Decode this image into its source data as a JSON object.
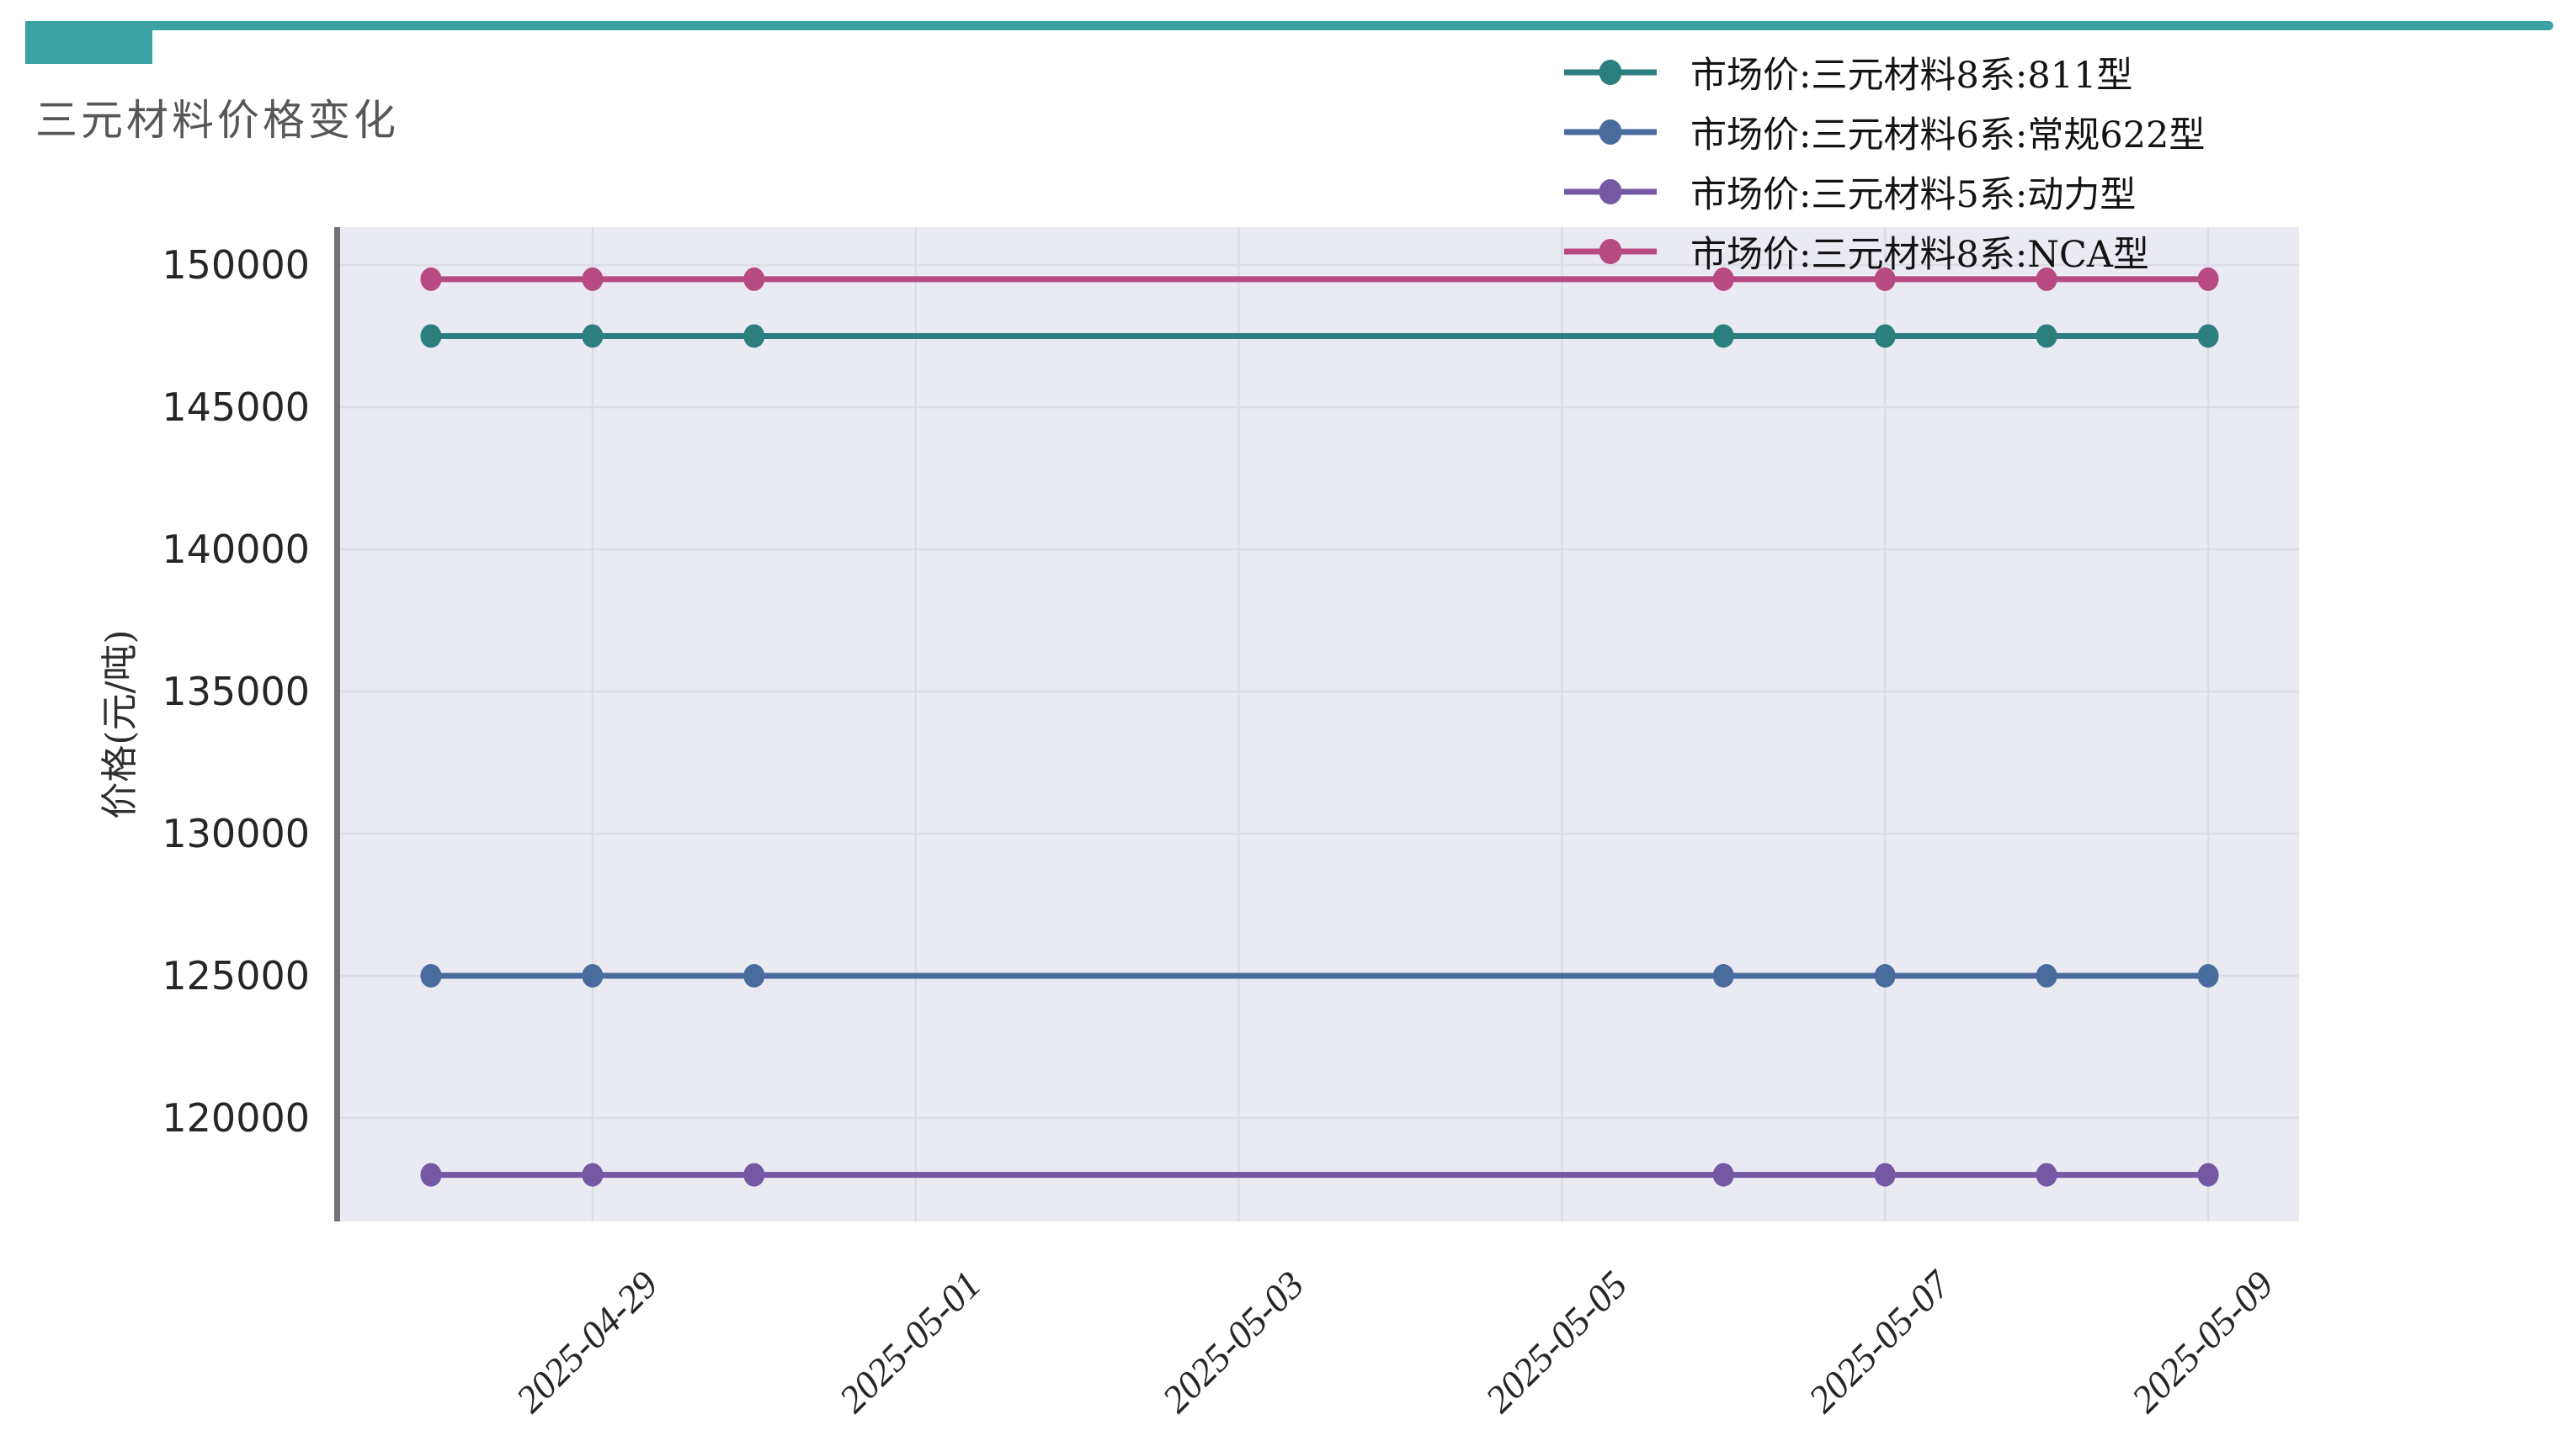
{
  "page": {
    "background": "#ffffff"
  },
  "decor": {
    "accent_color": "#3aa2a2"
  },
  "chart_data": {
    "type": "line",
    "title": "三元材料价格变化",
    "xlabel": "",
    "ylabel": "价格(元/吨)",
    "x_dates": [
      "2025-04-28",
      "2025-04-29",
      "2025-04-30",
      "2025-05-06",
      "2025-05-07",
      "2025-05-08",
      "2025-05-09"
    ],
    "x_tick_labels": [
      "2025-04-29",
      "2025-05-01",
      "2025-05-03",
      "2025-05-05",
      "2025-05-07",
      "2025-05-09"
    ],
    "y_ticks": [
      150000,
      145000,
      140000,
      135000,
      130000,
      125000,
      120000
    ],
    "ylim": [
      116361,
      151331
    ],
    "xlim_days": [
      -0.5625,
      11.5625
    ],
    "grid": true,
    "legend_position": "top-right",
    "plot_bg": "#eaeaf2",
    "grid_color": "#dcdce4",
    "spine_color": "#737373",
    "tick_label_color": "#262626",
    "series": [
      {
        "name": "市场价:三元材料8系:811型",
        "color": "#2b7f7f",
        "values": [
          147500,
          147500,
          147500,
          147500,
          147500,
          147500,
          147500
        ]
      },
      {
        "name": "市场价:三元材料6系:常规622型",
        "color": "#4a6b9d",
        "values": [
          125000,
          125000,
          125000,
          125000,
          125000,
          125000,
          125000
        ]
      },
      {
        "name": "市场价:三元材料5系:动力型",
        "color": "#7458a4",
        "values": [
          118000,
          118000,
          118000,
          118000,
          118000,
          118000,
          118000
        ]
      },
      {
        "name": "市场价:三元材料8系:NCA型",
        "color": "#b84a82",
        "values": [
          149500,
          149500,
          149500,
          149500,
          149500,
          149500,
          149500
        ]
      }
    ]
  }
}
